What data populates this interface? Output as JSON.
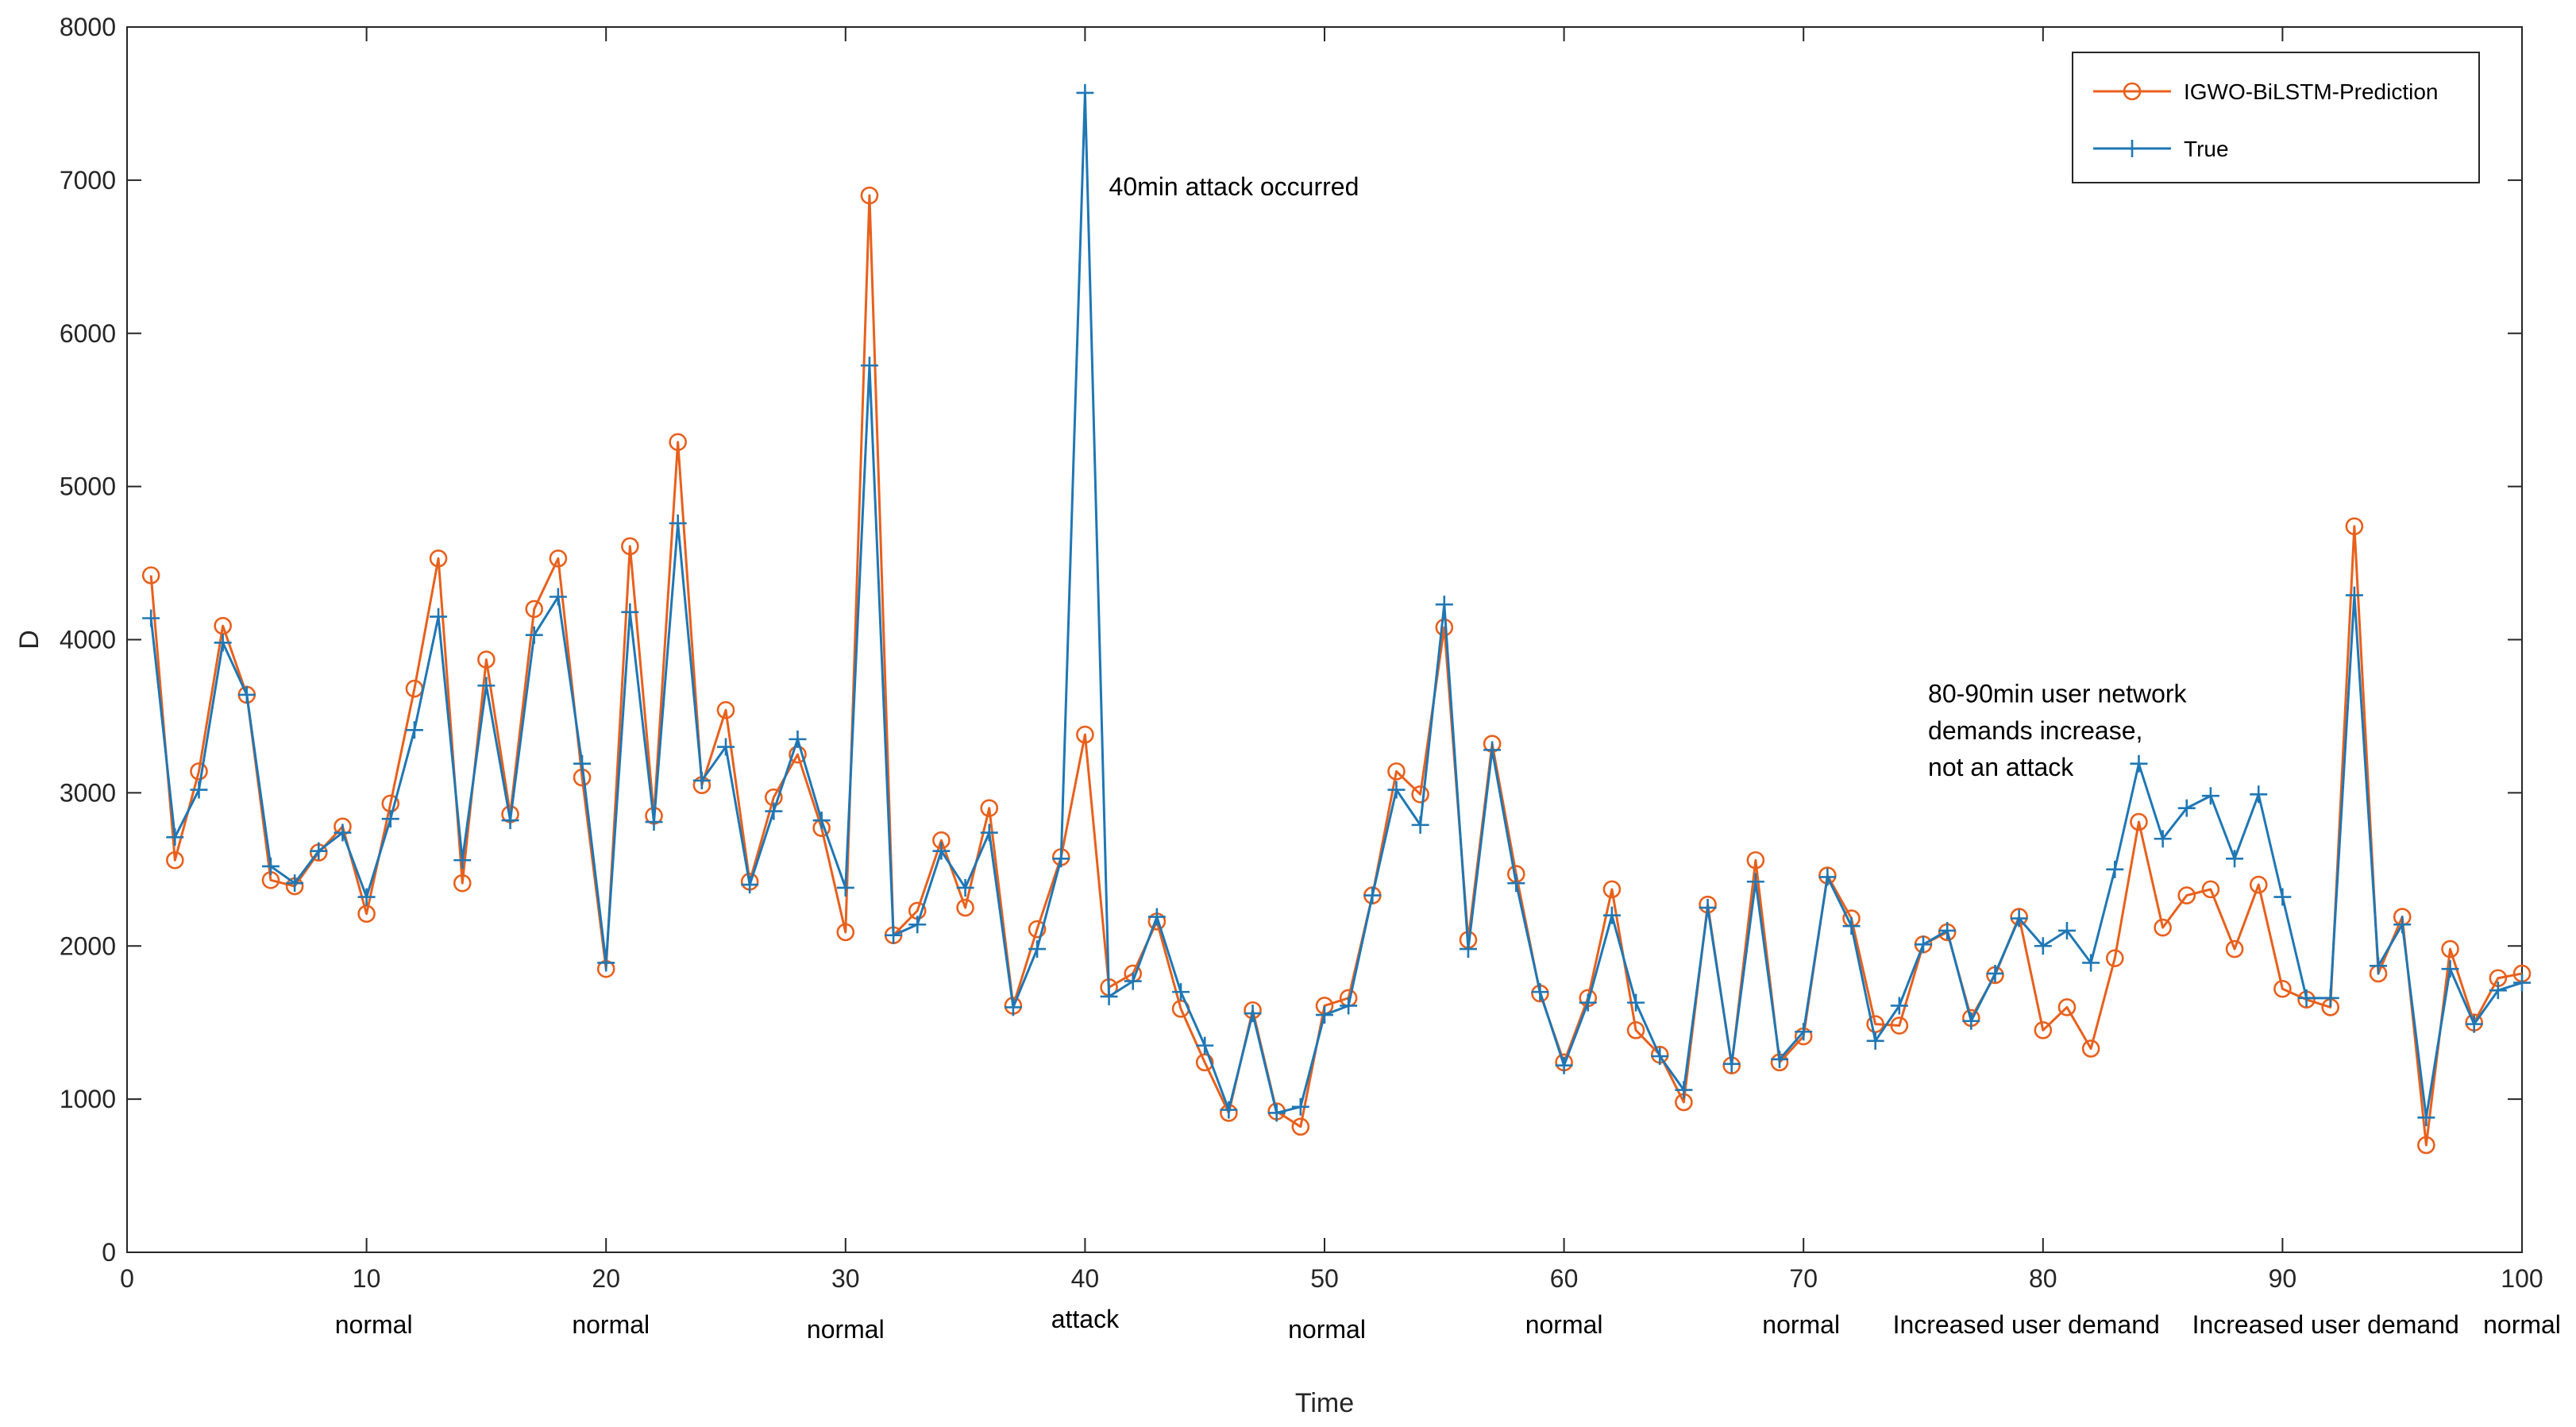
{
  "colors": {
    "prediction": "#E8601C",
    "true": "#1F77B4",
    "axis": "#262626"
  },
  "chart_data": {
    "type": "line",
    "title": "",
    "xlabel": "Time",
    "ylabel": "D",
    "xlim": [
      0,
      100
    ],
    "ylim": [
      0,
      8000
    ],
    "xticks": [
      0,
      10,
      20,
      30,
      40,
      50,
      60,
      70,
      80,
      90,
      100
    ],
    "xtick_labels": [
      "0",
      "10",
      "20",
      "30",
      "40",
      "50",
      "60",
      "70",
      "80",
      "90",
      "100"
    ],
    "yticks": [
      0,
      1000,
      2000,
      3000,
      4000,
      5000,
      6000,
      7000,
      8000
    ],
    "ytick_labels": [
      "0",
      "1000",
      "2000",
      "3000",
      "4000",
      "5000",
      "6000",
      "7000",
      "8000"
    ],
    "grid": false,
    "legend_position": "top-right",
    "x": [
      1,
      2,
      3,
      4,
      5,
      6,
      7,
      8,
      9,
      10,
      11,
      12,
      13,
      14,
      15,
      16,
      17,
      18,
      19,
      20,
      21,
      22,
      23,
      24,
      25,
      26,
      27,
      28,
      29,
      30,
      31,
      32,
      33,
      34,
      35,
      36,
      37,
      38,
      39,
      40,
      41,
      42,
      43,
      44,
      45,
      46,
      47,
      48,
      49,
      50,
      51,
      52,
      53,
      54,
      55,
      56,
      57,
      58,
      59,
      60,
      61,
      62,
      63,
      64,
      65,
      66,
      67,
      68,
      69,
      70,
      71,
      72,
      73,
      74,
      75,
      76,
      77,
      78,
      79,
      80,
      81,
      82,
      83,
      84,
      85,
      86,
      87,
      88,
      89,
      90,
      91,
      92,
      93,
      94,
      95,
      96,
      97,
      98,
      99,
      100
    ],
    "series": [
      {
        "name": "IGWO-BiLSTM-Prediction",
        "marker": "circle",
        "values": [
          4420,
          2560,
          3140,
          4090,
          3640,
          2430,
          2390,
          2610,
          2780,
          2210,
          2930,
          3680,
          4530,
          2410,
          3870,
          2860,
          4200,
          4530,
          3100,
          1850,
          4610,
          2850,
          5290,
          3050,
          3540,
          2420,
          2970,
          3250,
          2770,
          2090,
          6900,
          2070,
          2230,
          2690,
          2250,
          2900,
          1610,
          2110,
          2580,
          3380,
          1730,
          1820,
          2160,
          1590,
          1240,
          910,
          1580,
          920,
          820,
          1610,
          1660,
          2330,
          3140,
          2990,
          4080,
          2040,
          3320,
          2470,
          1690,
          1240,
          1660,
          2370,
          1450,
          1290,
          980,
          2270,
          1220,
          2560,
          1240,
          1410,
          2460,
          2180,
          1490,
          1480,
          2010,
          2090,
          1530,
          1810,
          2190,
          1450,
          1600,
          1330,
          1920,
          2810,
          2120,
          2330,
          2370,
          1980,
          2400,
          1720,
          1650,
          1600,
          4740,
          1820,
          2190,
          700,
          1980,
          1500,
          1790,
          1820
        ]
      },
      {
        "name": "True",
        "marker": "plus",
        "values": [
          4140,
          2710,
          3020,
          3980,
          3640,
          2520,
          2410,
          2620,
          2740,
          2320,
          2830,
          3410,
          4150,
          2560,
          3700,
          2820,
          4030,
          4280,
          3190,
          1890,
          4180,
          2810,
          4760,
          3080,
          3300,
          2400,
          2880,
          3350,
          2820,
          2380,
          5790,
          2070,
          2140,
          2620,
          2380,
          2740,
          1600,
          1980,
          2570,
          7570,
          1670,
          1770,
          2190,
          1700,
          1350,
          930,
          1560,
          910,
          950,
          1550,
          1610,
          2330,
          3020,
          2790,
          4230,
          1980,
          3280,
          2410,
          1700,
          1220,
          1630,
          2200,
          1630,
          1280,
          1060,
          2250,
          1230,
          2420,
          1260,
          1440,
          2450,
          2130,
          1380,
          1610,
          2010,
          2100,
          1510,
          1820,
          2180,
          2000,
          2100,
          1890,
          2500,
          3190,
          2700,
          2900,
          2980,
          2570,
          2990,
          2320,
          1660,
          1660,
          4290,
          1870,
          2140,
          880,
          1850,
          1490,
          1710,
          1760
        ]
      }
    ],
    "annotations": [
      {
        "text": "40min attack occurred",
        "x": 41,
        "y": 6900
      },
      {
        "text": "80-90min user network",
        "x": 75.2,
        "y": 3590
      },
      {
        "text": "demands increase,",
        "x": 75.2,
        "y": 3350
      },
      {
        "text": "not an attack",
        "x": 75.2,
        "y": 3110
      }
    ],
    "segment_labels": [
      {
        "text": "normal",
        "x": 10.3,
        "row": 0
      },
      {
        "text": "normal",
        "x": 20.2,
        "row": 0
      },
      {
        "text": "normal",
        "x": 30.0,
        "row": 1
      },
      {
        "text": "attack",
        "x": 40.0,
        "row": -1
      },
      {
        "text": "normal",
        "x": 50.1,
        "row": 1
      },
      {
        "text": "normal",
        "x": 60.0,
        "row": 0
      },
      {
        "text": "normal",
        "x": 69.9,
        "row": 0
      },
      {
        "text": "Increased user demand",
        "x": 79.3,
        "row": 0
      },
      {
        "text": "Increased user demand",
        "x": 91.8,
        "row": 0
      },
      {
        "text": "normal",
        "x": 100.0,
        "row": 0
      }
    ]
  }
}
